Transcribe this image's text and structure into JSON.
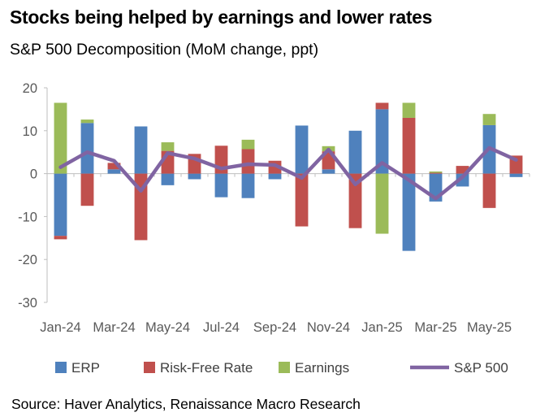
{
  "title": "Stocks being helped by earnings and lower rates",
  "subtitle": "S&P 500 Decomposition (MoM change, ppt)",
  "source": "Source: Haver Analytics, Renaissance Macro Research",
  "colors": {
    "erp": "#4f81bd",
    "risk_free": "#c0504d",
    "earnings": "#9bbb59",
    "sp500": "#8064a2",
    "axis": "#bfbfbf"
  },
  "chart_data": {
    "type": "bar",
    "stacked": true,
    "months": [
      "Jan-24",
      "Feb-24",
      "Mar-24",
      "Apr-24",
      "May-24",
      "Jun-24",
      "Jul-24",
      "Aug-24",
      "Sep-24",
      "Oct-24",
      "Nov-24",
      "Dec-24",
      "Jan-25",
      "Feb-25",
      "Mar-25",
      "Apr-25",
      "May-25",
      "Jun-25"
    ],
    "x_tick_labels": [
      "Jan-24",
      "Mar-24",
      "May-24",
      "Jul-24",
      "Sep-24",
      "Nov-24",
      "Jan-25",
      "Mar-25",
      "May-25"
    ],
    "y_ticks": [
      20,
      10,
      0,
      -10,
      -20,
      -30
    ],
    "ylim": [
      -30,
      20
    ],
    "legend_position": "bottom",
    "series": [
      {
        "name": "ERP",
        "key": "erp",
        "values": [
          -14.5,
          11.8,
          1.0,
          11.0,
          -2.7,
          -1.3,
          -5.5,
          -5.7,
          -1.3,
          11.2,
          1.0,
          10.0,
          15.0,
          -18.0,
          -6.5,
          -3.0,
          11.3,
          -0.8
        ]
      },
      {
        "name": "Risk-Free Rate",
        "key": "risk_free",
        "values": [
          -0.8,
          -7.5,
          1.5,
          -15.5,
          5.3,
          4.6,
          6.5,
          5.7,
          3.0,
          -12.3,
          4.2,
          -12.7,
          1.5,
          13.0,
          0.2,
          1.8,
          -8.0,
          4.2
        ]
      },
      {
        "name": "Earnings",
        "key": "earnings",
        "values": [
          16.5,
          0.8,
          0.0,
          0.0,
          2.0,
          0.0,
          0.0,
          2.2,
          0.0,
          0.0,
          1.2,
          0.0,
          -14.0,
          3.5,
          0.3,
          0.0,
          2.6,
          0.0
        ]
      },
      {
        "name": "S&P 500",
        "key": "sp500",
        "line": true,
        "values": [
          1.5,
          5.0,
          3.0,
          -4.0,
          4.8,
          3.5,
          1.2,
          2.2,
          2.0,
          -1.0,
          5.6,
          -2.5,
          2.5,
          -1.5,
          -5.8,
          -0.8,
          6.0,
          3.2
        ]
      }
    ]
  }
}
